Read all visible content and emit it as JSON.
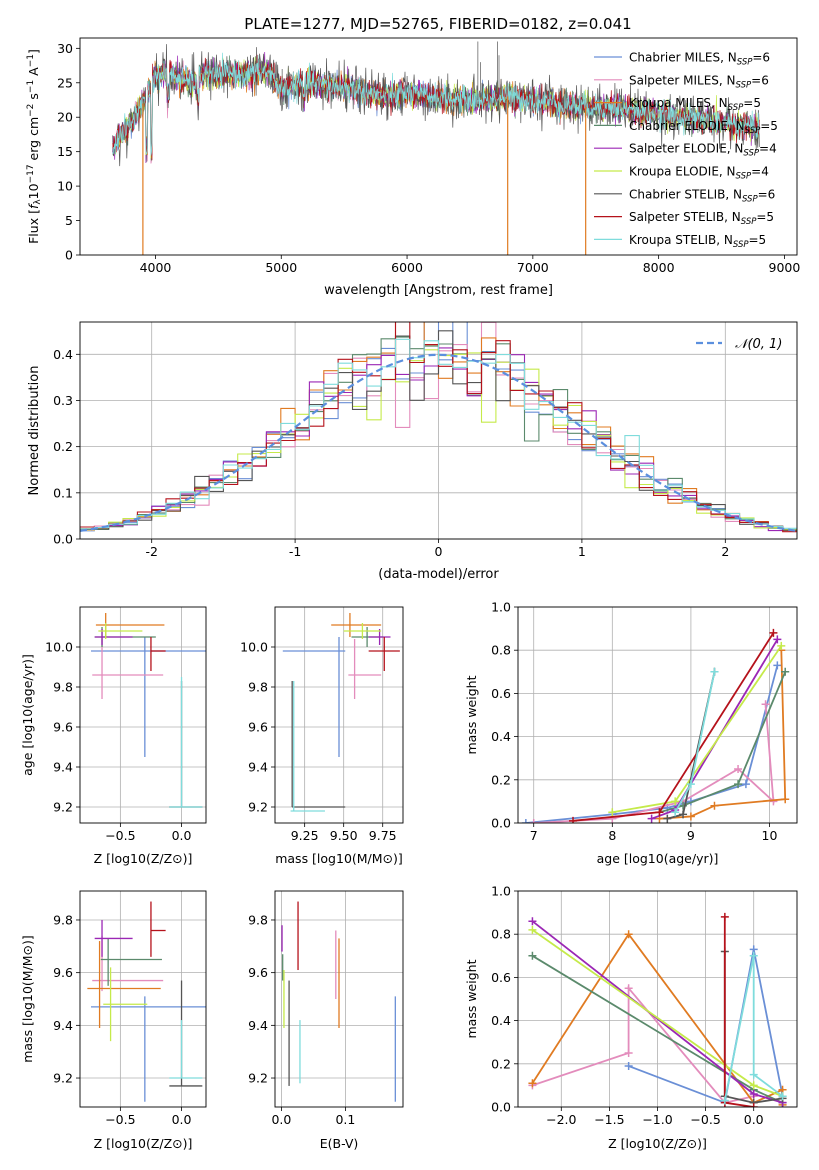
{
  "title": "PLATE=1277, MJD=52765, FIBERID=0182, z=0.041",
  "series_styles": [
    {
      "name": "Chabrier MILES",
      "nssp": "6",
      "color": "#6a8fd6"
    },
    {
      "name": "Salpeter MILES",
      "nssp": "6",
      "color": "#e38cbc"
    },
    {
      "name": "Kroupa MILES",
      "nssp": "5",
      "color": "#e07b22"
    },
    {
      "name": "Chabrier ELODIE",
      "nssp": "5",
      "color": "#5b8a6c"
    },
    {
      "name": "Salpeter ELODIE",
      "nssp": "4",
      "color": "#9b27b5"
    },
    {
      "name": "Kroupa ELODIE",
      "nssp": "4",
      "color": "#c5ea4a"
    },
    {
      "name": "Chabrier STELIB",
      "nssp": "6",
      "color": "#555555"
    },
    {
      "name": "Salpeter STELIB",
      "nssp": "5",
      "color": "#b5121b"
    },
    {
      "name": "Kroupa STELIB",
      "nssp": "5",
      "color": "#7fdcdc"
    }
  ],
  "chart_data": [
    {
      "id": "spectrum",
      "type": "line",
      "title": "PLATE=1277, MJD=52765, FIBERID=0182, z=0.041",
      "xlabel": "wavelength [Angstrom, rest frame]",
      "ylabel": "Flux [f_λ 10^-17 erg cm^-2 s^-1 A^-1]",
      "xlim": [
        3400,
        9100
      ],
      "ylim": [
        0,
        31.5
      ],
      "xticks": [
        4000,
        5000,
        6000,
        7000,
        8000,
        9000
      ],
      "yticks": [
        0,
        5,
        10,
        15,
        20,
        25,
        30
      ],
      "grid": false,
      "legend_loc": "upper right",
      "continuum": {
        "x": [
          3650,
          3700,
          3800,
          3900,
          4000,
          4100,
          4200,
          4300,
          4400,
          4500,
          4600,
          4700,
          4800,
          4900,
          5000,
          5200,
          5400,
          5600,
          5800,
          6000,
          6200,
          6400,
          6600,
          6800,
          7000,
          7200,
          7400,
          7600,
          7800,
          8000,
          8200,
          8400,
          8600,
          8800
        ],
        "y": [
          15,
          17,
          19,
          22,
          26,
          26.5,
          25.5,
          25,
          26.5,
          26,
          26.5,
          26,
          26.5,
          26.5,
          24,
          25,
          24.5,
          24,
          23,
          23.5,
          23,
          22.5,
          22.5,
          23,
          22.5,
          22,
          21.5,
          21.5,
          21,
          20.5,
          20,
          19.5,
          19,
          18.5
        ]
      },
      "dropouts": [
        {
          "series": "Kroupa MILES",
          "x": 3900,
          "y_min": 0
        },
        {
          "series": "Kroupa MILES",
          "x": 6800,
          "y_min": 0
        },
        {
          "series": "Kroupa MILES",
          "x": 7420,
          "y_min": 0
        }
      ],
      "notes_visible": "spectra of all 9 fits overlap; continuum ~15-27"
    },
    {
      "id": "residuals",
      "type": "line",
      "xlabel": "(data-model)/error",
      "ylabel": "Normed distribution",
      "xlim": [
        -2.5,
        2.5
      ],
      "ylim": [
        0,
        0.47
      ],
      "xticks": [
        -2,
        -1,
        0,
        1,
        2
      ],
      "yticks": [
        0.0,
        0.1,
        0.2,
        0.3,
        0.4
      ],
      "grid": true,
      "legend_loc": "upper right",
      "reference_curve": {
        "name": "N(0,1)",
        "label": "𝒩(0, 1)",
        "mu": 0,
        "sigma": 1
      },
      "bins": {
        "start": -2.5,
        "width": 0.1,
        "count": 50
      }
    },
    {
      "id": "age_vs_Z",
      "type": "scatter",
      "xlabel": "Z [log10(Z/Z⊙)]",
      "ylabel": "age  [log10(age/yr)]",
      "xlim": [
        -0.83,
        0.2
      ],
      "ylim": [
        9.12,
        10.2
      ],
      "xticks": [
        -0.5,
        0.0
      ],
      "xticklabels": [
        "−0.5",
        "0.0"
      ],
      "yticks": [
        9.2,
        9.4,
        9.6,
        9.8,
        10.0
      ],
      "grid": true,
      "points": [
        {
          "series": "Chabrier MILES",
          "x": -0.3,
          "y": 9.98,
          "xerr": [
            0.44,
            0.5
          ],
          "yerr": [
            0.53,
            0.07
          ]
        },
        {
          "series": "Salpeter MILES",
          "x": -0.65,
          "y": 9.86,
          "xerr": [
            0.08,
            0.5
          ],
          "yerr": [
            0.12,
            0.18
          ]
        },
        {
          "series": "Kroupa MILES",
          "x": -0.62,
          "y": 10.11,
          "xerr": [
            0.08,
            0.48
          ],
          "yerr": [
            0.06,
            0.06
          ]
        },
        {
          "series": "Chabrier ELODIE",
          "x": -0.65,
          "y": 10.05,
          "xerr": [
            0.06,
            0.44
          ],
          "yerr": [
            0.05,
            0.05
          ]
        },
        {
          "series": "Salpeter ELODIE",
          "x": -0.65,
          "y": 10.05,
          "xerr": [
            0.06,
            0.25
          ],
          "yerr": [
            0.04,
            0.04
          ]
        },
        {
          "series": "Kroupa ELODIE",
          "x": -0.62,
          "y": 10.08,
          "xerr": [
            0.06,
            0.3
          ],
          "yerr": [
            0.04,
            0.04
          ]
        },
        {
          "series": "Chabrier STELIB",
          "x": 0.0,
          "y": 9.2,
          "xerr": [
            0.1,
            0.17
          ],
          "yerr": [
            0.0,
            0.63
          ]
        },
        {
          "series": "Salpeter STELIB",
          "x": -0.25,
          "y": 9.98,
          "xerr": [
            0.0,
            0.12
          ],
          "yerr": [
            0.1,
            0.07
          ]
        },
        {
          "series": "Kroupa STELIB",
          "x": 0.0,
          "y": 9.2,
          "xerr": [
            0.1,
            0.17
          ],
          "yerr": [
            0.0,
            0.65
          ]
        }
      ]
    },
    {
      "id": "age_vs_mass",
      "type": "scatter",
      "xlabel": "mass [log10(M/M⊙)]",
      "ylabel": "",
      "xlim": [
        9.06,
        9.88
      ],
      "ylim": [
        9.12,
        10.2
      ],
      "xticks": [
        9.25,
        9.5,
        9.75
      ],
      "yticks": [
        9.2,
        9.4,
        9.6,
        9.8,
        10.0
      ],
      "grid": true,
      "points": [
        {
          "series": "Chabrier MILES",
          "x": 9.47,
          "y": 9.98,
          "xerr": [
            0.36,
            0.04
          ],
          "yerr": [
            0.53,
            0.07
          ]
        },
        {
          "series": "Salpeter MILES",
          "x": 9.57,
          "y": 9.86,
          "xerr": [
            0.04,
            0.17
          ],
          "yerr": [
            0.12,
            0.18
          ]
        },
        {
          "series": "Kroupa MILES",
          "x": 9.54,
          "y": 10.11,
          "xerr": [
            0.12,
            0.2
          ],
          "yerr": [
            0.06,
            0.06
          ]
        },
        {
          "series": "Chabrier ELODIE",
          "x": 9.65,
          "y": 10.05,
          "xerr": [
            0.1,
            0.1
          ],
          "yerr": [
            0.05,
            0.05
          ]
        },
        {
          "series": "Salpeter ELODIE",
          "x": 9.73,
          "y": 10.05,
          "xerr": [
            0.07,
            0.07
          ],
          "yerr": [
            0.04,
            0.04
          ]
        },
        {
          "series": "Kroupa ELODIE",
          "x": 9.62,
          "y": 10.08,
          "xerr": [
            0.12,
            0.12
          ],
          "yerr": [
            0.04,
            0.04
          ]
        },
        {
          "series": "Chabrier STELIB",
          "x": 9.17,
          "y": 9.2,
          "xerr": [
            0.0,
            0.34
          ],
          "yerr": [
            0.0,
            0.63
          ]
        },
        {
          "series": "Salpeter STELIB",
          "x": 9.76,
          "y": 9.98,
          "xerr": [
            0.1,
            0.1
          ],
          "yerr": [
            0.1,
            0.07
          ]
        },
        {
          "series": "Kroupa STELIB",
          "x": 9.18,
          "y": 9.18,
          "xerr": [
            0.02,
            0.2
          ],
          "yerr": [
            0.0,
            0.65
          ]
        }
      ]
    },
    {
      "id": "massweight_vs_age",
      "type": "line",
      "xlabel": "age  [log10(age/yr)]",
      "ylabel": "mass weight",
      "xlim": [
        6.8,
        10.35
      ],
      "ylim": [
        0,
        1.0
      ],
      "xticks": [
        7,
        8,
        9,
        10
      ],
      "yticks": [
        0.0,
        0.2,
        0.4,
        0.6,
        0.8,
        1.0
      ],
      "grid": true,
      "series": [
        {
          "name": "Chabrier MILES",
          "x": [
            6.9,
            8.0,
            8.7,
            9.0,
            9.7,
            10.1
          ],
          "y": [
            0.0,
            0.04,
            0.07,
            0.1,
            0.18,
            0.73
          ]
        },
        {
          "name": "Salpeter MILES",
          "x": [
            7.0,
            8.0,
            8.9,
            9.6,
            10.05,
            9.95
          ],
          "y": [
            0.0,
            0.02,
            0.1,
            0.25,
            0.1,
            0.55
          ]
        },
        {
          "name": "Kroupa MILES",
          "x": [
            8.6,
            9.0,
            9.3,
            10.2,
            10.15
          ],
          "y": [
            0.02,
            0.03,
            0.08,
            0.11,
            0.8
          ]
        },
        {
          "name": "Chabrier ELODIE",
          "x": [
            8.6,
            8.9,
            9.6,
            10.2
          ],
          "y": [
            0.05,
            0.08,
            0.18,
            0.7
          ]
        },
        {
          "name": "Salpeter ELODIE",
          "x": [
            8.5,
            8.8,
            10.1
          ],
          "y": [
            0.02,
            0.06,
            0.85
          ]
        },
        {
          "name": "Kroupa ELODIE",
          "x": [
            8.0,
            8.8,
            10.15
          ],
          "y": [
            0.05,
            0.1,
            0.82
          ]
        },
        {
          "name": "Chabrier STELIB",
          "x": [
            8.7,
            8.9,
            9.3
          ],
          "y": [
            0.02,
            0.04,
            0.7
          ]
        },
        {
          "name": "Salpeter STELIB",
          "x": [
            7.5,
            8.6,
            10.05
          ],
          "y": [
            0.01,
            0.05,
            0.88
          ]
        },
        {
          "name": "Kroupa STELIB",
          "x": [
            8.8,
            9.0,
            9.3
          ],
          "y": [
            0.05,
            0.18,
            0.7
          ]
        }
      ]
    },
    {
      "id": "mass_vs_Z",
      "type": "scatter",
      "xlabel": "Z [log10(Z/Z⊙)]",
      "ylabel": "mass [log10(M/M⊙)]",
      "xlim": [
        -0.83,
        0.2
      ],
      "ylim": [
        9.09,
        9.91
      ],
      "xticks": [
        -0.5,
        0.0
      ],
      "xticklabels": [
        "−0.5",
        "0.0"
      ],
      "yticks": [
        9.2,
        9.4,
        9.6,
        9.8
      ],
      "grid": true,
      "points": [
        {
          "series": "Chabrier MILES",
          "x": -0.3,
          "y": 9.47,
          "xerr": [
            0.44,
            0.5
          ],
          "yerr": [
            0.36,
            0.04
          ]
        },
        {
          "series": "Salpeter MILES",
          "x": -0.65,
          "y": 9.57,
          "xerr": [
            0.08,
            0.5
          ],
          "yerr": [
            0.04,
            0.17
          ]
        },
        {
          "series": "Kroupa MILES",
          "x": -0.67,
          "y": 9.54,
          "xerr": [
            0.1,
            0.5
          ],
          "yerr": [
            0.15,
            0.18
          ]
        },
        {
          "series": "Chabrier ELODIE",
          "x": -0.6,
          "y": 9.65,
          "xerr": [
            0.06,
            0.44
          ],
          "yerr": [
            0.1,
            0.08
          ]
        },
        {
          "series": "Salpeter ELODIE",
          "x": -0.65,
          "y": 9.73,
          "xerr": [
            0.06,
            0.25
          ],
          "yerr": [
            0.07,
            0.07
          ]
        },
        {
          "series": "Kroupa ELODIE",
          "x": -0.58,
          "y": 9.48,
          "xerr": [
            0.06,
            0.3
          ],
          "yerr": [
            0.14,
            0.14
          ]
        },
        {
          "series": "Chabrier STELIB",
          "x": 0.0,
          "y": 9.17,
          "xerr": [
            0.1,
            0.17
          ],
          "yerr": [
            0.0,
            0.4
          ]
        },
        {
          "series": "Salpeter STELIB",
          "x": -0.25,
          "y": 9.76,
          "xerr": [
            0.0,
            0.12
          ],
          "yerr": [
            0.1,
            0.11
          ]
        },
        {
          "series": "Kroupa STELIB",
          "x": 0.0,
          "y": 9.2,
          "xerr": [
            0.1,
            0.17
          ],
          "yerr": [
            0.0,
            0.22
          ]
        }
      ]
    },
    {
      "id": "mass_vs_EBV",
      "type": "scatter",
      "xlabel": "E(B-V)",
      "ylabel": "",
      "xlim": [
        -0.01,
        0.19
      ],
      "ylim": [
        9.09,
        9.91
      ],
      "xticks": [
        0.0,
        0.1
      ],
      "yticks": [
        9.2,
        9.4,
        9.6,
        9.8
      ],
      "grid": true,
      "points": [
        {
          "series": "Chabrier MILES",
          "x": 0.178,
          "y": 9.47,
          "yerr": [
            0.36,
            0.04
          ]
        },
        {
          "series": "Salpeter MILES",
          "x": 0.085,
          "y": 9.6,
          "yerr": [
            0.1,
            0.16
          ]
        },
        {
          "series": "Kroupa MILES",
          "x": 0.09,
          "y": 9.56,
          "yerr": [
            0.17,
            0.17
          ]
        },
        {
          "series": "Chabrier ELODIE",
          "x": 0.002,
          "y": 9.62,
          "yerr": [
            0.05,
            0.05
          ]
        },
        {
          "series": "Salpeter ELODIE",
          "x": 0.001,
          "y": 9.73,
          "yerr": [
            0.05,
            0.05
          ]
        },
        {
          "series": "Kroupa ELODIE",
          "x": 0.004,
          "y": 9.5,
          "yerr": [
            0.11,
            0.11
          ]
        },
        {
          "series": "Chabrier STELIB",
          "x": 0.012,
          "y": 9.37,
          "yerr": [
            0.2,
            0.2
          ]
        },
        {
          "series": "Salpeter STELIB",
          "x": 0.026,
          "y": 9.74,
          "yerr": [
            0.13,
            0.13
          ]
        },
        {
          "series": "Kroupa STELIB",
          "x": 0.029,
          "y": 9.3,
          "yerr": [
            0.12,
            0.12
          ]
        }
      ]
    },
    {
      "id": "massweight_vs_Z",
      "type": "line",
      "xlabel": "Z [log10(Z/Z⊙)]",
      "ylabel": "mass weight",
      "xlim": [
        -2.45,
        0.45
      ],
      "ylim": [
        0,
        1.0
      ],
      "xticks": [
        -2.0,
        -1.5,
        -1.0,
        -0.5,
        0.0
      ],
      "xticklabels": [
        "−2.0",
        "−1.5",
        "−1.0",
        "−0.5",
        "0.0"
      ],
      "yticks": [
        0.0,
        0.2,
        0.4,
        0.6,
        0.8,
        1.0
      ],
      "grid": true,
      "series": [
        {
          "name": "Chabrier MILES",
          "x": [
            -1.3,
            -0.3,
            0.0,
            0.3
          ],
          "y": [
            0.19,
            0.02,
            0.73,
            0.05
          ]
        },
        {
          "name": "Salpeter MILES",
          "x": [
            -2.3,
            -1.3,
            -1.3,
            -0.3,
            0.0
          ],
          "y": [
            0.1,
            0.25,
            0.55,
            0.02,
            0.05
          ]
        },
        {
          "name": "Kroupa MILES",
          "x": [
            -2.3,
            -1.3,
            0.0,
            0.3,
            0.3
          ],
          "y": [
            0.11,
            0.8,
            0.02,
            0.08,
            0.01
          ]
        },
        {
          "name": "Chabrier ELODIE",
          "x": [
            -2.3,
            0.0,
            0.3
          ],
          "y": [
            0.7,
            0.08,
            0.02
          ]
        },
        {
          "name": "Salpeter ELODIE",
          "x": [
            -2.3,
            0.0,
            0.3
          ],
          "y": [
            0.86,
            0.06,
            0.02
          ]
        },
        {
          "name": "Kroupa ELODIE",
          "x": [
            -2.3,
            0.0,
            0.3
          ],
          "y": [
            0.82,
            0.1,
            0.05
          ]
        },
        {
          "name": "Chabrier STELIB",
          "x": [
            -0.3,
            -0.3,
            0.0,
            0.3
          ],
          "y": [
            0.72,
            0.05,
            0.02,
            0.04
          ]
        },
        {
          "name": "Salpeter STELIB",
          "x": [
            -0.3,
            -0.3,
            0.0
          ],
          "y": [
            0.88,
            0.02,
            0.0
          ]
        },
        {
          "name": "Kroupa STELIB",
          "x": [
            -0.3,
            0.0,
            0.0,
            0.3
          ],
          "y": [
            0.03,
            0.7,
            0.15,
            0.05
          ]
        }
      ]
    }
  ]
}
